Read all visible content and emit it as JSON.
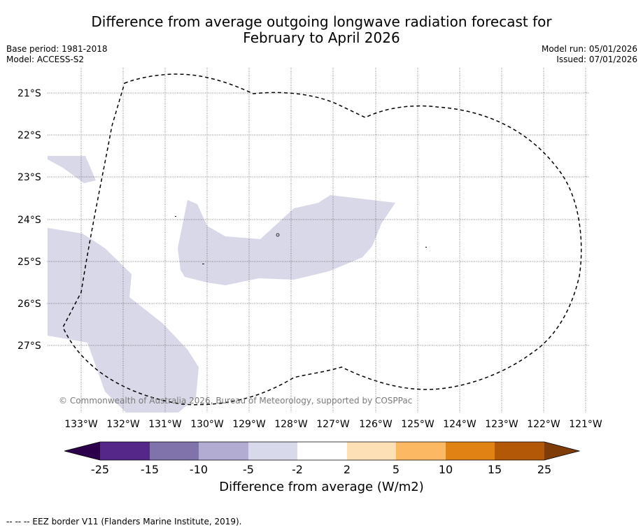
{
  "header": {
    "title_line1": "Difference from average outgoing longwave radiation forecast for",
    "title_line2": "February to April 2026",
    "base_period": "Base period: 1981-2018",
    "model": "Model: ACCESS-S2",
    "model_run": "Model run: 05/01/2026",
    "issued": "Issued: 07/01/2026"
  },
  "map": {
    "latitude_labels": [
      "21°S",
      "22°S",
      "23°S",
      "24°S",
      "25°S",
      "26°S",
      "27°S"
    ],
    "longitude_labels": [
      "133°W",
      "132°W",
      "131°W",
      "130°W",
      "129°W",
      "128°W",
      "127°W",
      "126°W",
      "125°W",
      "124°W",
      "123°W",
      "122°W",
      "121°W"
    ],
    "copyright": "© Commonwealth of Australia 2026, Bureau of Meteorology, supported by COSPPac",
    "anomaly_fill_color": "#d8d8e8",
    "eez_line_color": "#000000"
  },
  "colorbar": {
    "title": "Difference from average (W/m2)",
    "tick_labels": [
      "-25",
      "-15",
      "-10",
      "-5",
      "-2",
      "2",
      "5",
      "10",
      "15",
      "25"
    ],
    "colors": [
      "#2d004b",
      "#542788",
      "#8073ac",
      "#b2abd2",
      "#d8daeb",
      "#ffffff",
      "#fee0b6",
      "#fdb863",
      "#e08214",
      "#b35806",
      "#7f3b08"
    ]
  },
  "legend": {
    "eez_note": "--  --  -- EEZ border V11 (Flanders Marine Institute, 2019)."
  }
}
